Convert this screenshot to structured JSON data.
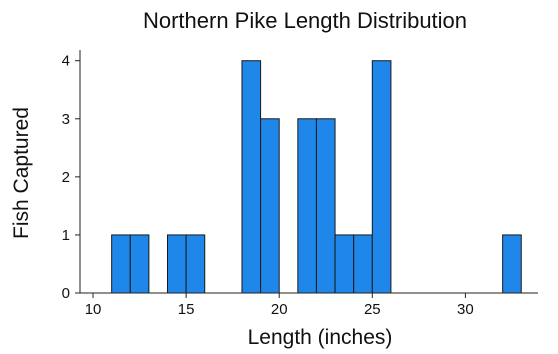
{
  "chart_data": {
    "type": "bar",
    "subtype": "histogram",
    "title": "Northern Pike Length Distribution",
    "xlabel": "Length (inches)",
    "ylabel": "Fish Captured",
    "xlim": [
      9.3,
      33.9
    ],
    "ylim": [
      0,
      4.15
    ],
    "xticks": [
      10,
      15,
      20,
      25,
      30
    ],
    "yticks": [
      0,
      1,
      2,
      3,
      4
    ],
    "bar_color": "#1f86ea",
    "edge_color": "#1a1a1a",
    "grid": false,
    "bins": [
      {
        "x0": 11,
        "x1": 12,
        "count": 1
      },
      {
        "x0": 12,
        "x1": 13,
        "count": 1
      },
      {
        "x0": 14,
        "x1": 15,
        "count": 1
      },
      {
        "x0": 15,
        "x1": 16,
        "count": 1
      },
      {
        "x0": 18,
        "x1": 19,
        "count": 4
      },
      {
        "x0": 19,
        "x1": 20,
        "count": 3
      },
      {
        "x0": 21,
        "x1": 22,
        "count": 3
      },
      {
        "x0": 22,
        "x1": 23,
        "count": 3
      },
      {
        "x0": 23,
        "x1": 24,
        "count": 1
      },
      {
        "x0": 24,
        "x1": 25,
        "count": 1
      },
      {
        "x0": 25,
        "x1": 26,
        "count": 4
      },
      {
        "x0": 32,
        "x1": 33,
        "count": 1
      }
    ]
  }
}
